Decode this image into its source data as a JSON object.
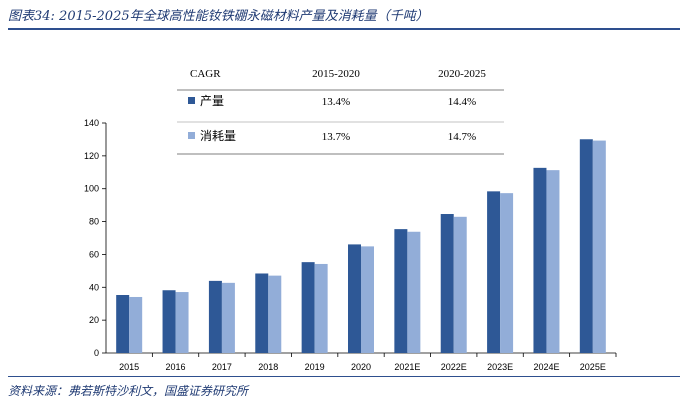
{
  "title": "图表34:  2015-2025年全球高性能钕铁硼永磁材料产量及消耗量（千吨）",
  "source": "资料来源：弗若斯特沙利文，国盛证券研究所",
  "colors": {
    "production": "#2e5896",
    "consumption": "#92add8",
    "accent": "#2e4f8e"
  },
  "cagr_table": {
    "header": [
      "CAGR",
      "2015-2020",
      "2020-2025"
    ],
    "rows": [
      {
        "label": "产量",
        "v1": "13.4%",
        "v2": "14.4%"
      },
      {
        "label": "消耗量",
        "v1": "13.7%",
        "v2": "14.7%"
      }
    ]
  },
  "chart_data": {
    "type": "bar",
    "categories": [
      "2015",
      "2016",
      "2017",
      "2018",
      "2019",
      "2020",
      "2021E",
      "2022E",
      "2023E",
      "2024E",
      "2025E"
    ],
    "series": [
      {
        "name": "产量",
        "values": [
          35.3,
          38.2,
          43.9,
          48.4,
          55.3,
          66.1,
          75.4,
          84.6,
          98.4,
          112.7,
          130.1
        ]
      },
      {
        "name": "消耗量",
        "values": [
          34.1,
          37.1,
          42.7,
          47.1,
          54.2,
          64.9,
          73.8,
          82.9,
          97.3,
          111.3,
          129.3
        ]
      }
    ],
    "ylim": [
      0,
      140
    ],
    "yticks": [
      0,
      20,
      40,
      60,
      80,
      100,
      120,
      140
    ],
    "grid": false
  }
}
